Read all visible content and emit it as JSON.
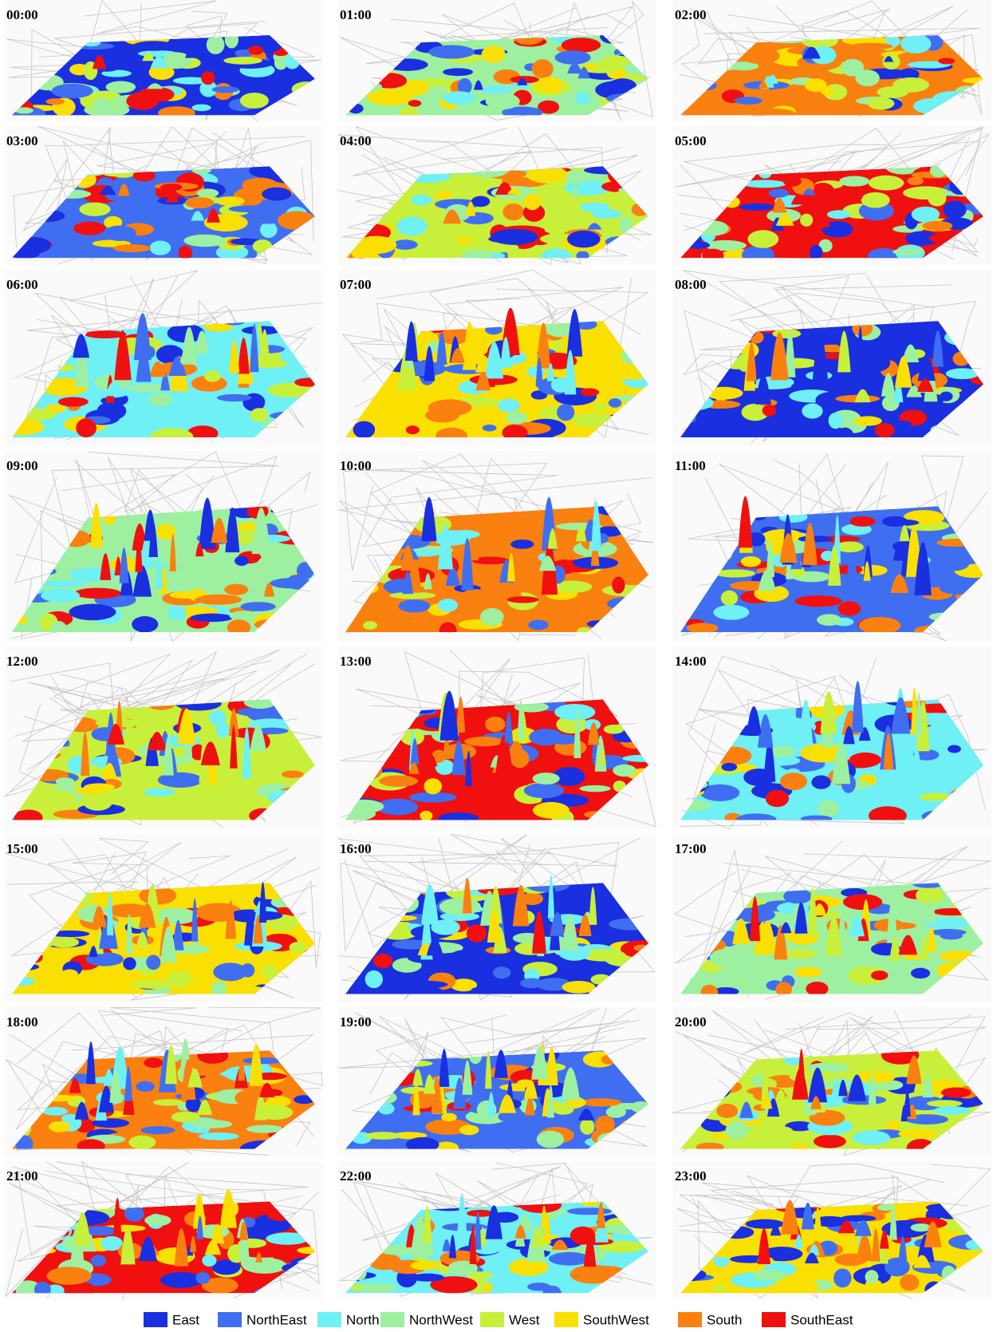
{
  "panels": [
    {
      "label": "00:00"
    },
    {
      "label": "01:00"
    },
    {
      "label": "02:00"
    },
    {
      "label": "03:00"
    },
    {
      "label": "04:00"
    },
    {
      "label": "05:00"
    },
    {
      "label": "06:00"
    },
    {
      "label": "07:00"
    },
    {
      "label": "08:00"
    },
    {
      "label": "09:00"
    },
    {
      "label": "10:00"
    },
    {
      "label": "11:00"
    },
    {
      "label": "12:00"
    },
    {
      "label": "13:00"
    },
    {
      "label": "14:00"
    },
    {
      "label": "15:00"
    },
    {
      "label": "16:00"
    },
    {
      "label": "17:00"
    },
    {
      "label": "18:00"
    },
    {
      "label": "19:00"
    },
    {
      "label": "20:00"
    },
    {
      "label": "21:00"
    },
    {
      "label": "22:00"
    },
    {
      "label": "23:00"
    }
  ],
  "legend": {
    "items": [
      {
        "name": "East",
        "color": "#1a2fe0"
      },
      {
        "name": "NorthEast",
        "color": "#3f6ff0"
      },
      {
        "name": "North",
        "color": "#6ef0f5"
      },
      {
        "name": "NorthWest",
        "color": "#9cf0a0"
      },
      {
        "name": "West",
        "color": "#c8f03a"
      },
      {
        "name": "SouthWest",
        "color": "#fae000"
      },
      {
        "name": "South",
        "color": "#fa8010"
      },
      {
        "name": "SouthEast",
        "color": "#f01010"
      }
    ]
  }
}
